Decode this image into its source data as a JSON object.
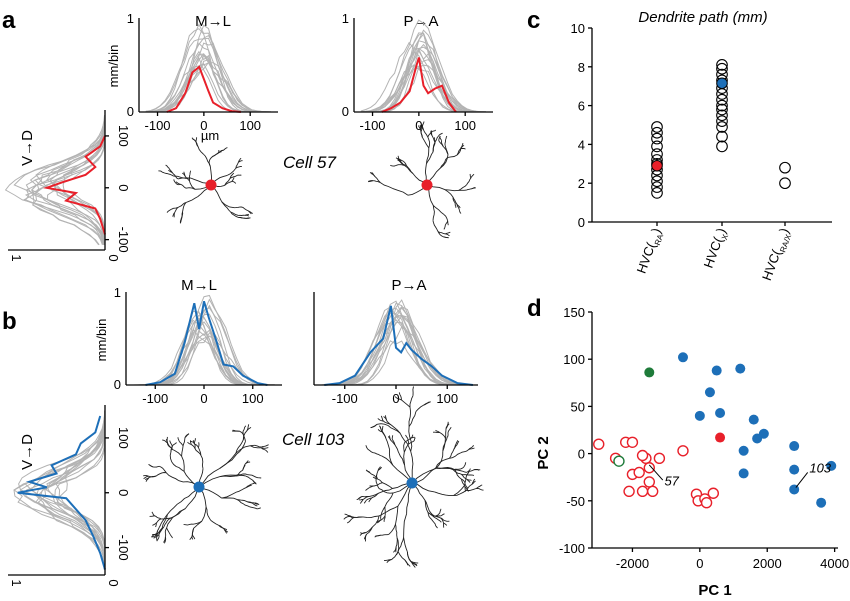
{
  "panel_labels": {
    "a": "a",
    "b": "b",
    "c": "c",
    "d": "d"
  },
  "cells": {
    "a": "Cell 57",
    "b": "Cell 103"
  },
  "colors": {
    "gray": "#b3b3b3",
    "red": "#e8202a",
    "blue": "#1d6fb8",
    "green": "#1e7b3a",
    "black": "#000000"
  },
  "chart_data": [
    {
      "type": "line",
      "panel": "a",
      "title": "M→L",
      "ylabel": "mm/bin",
      "xlabel": "µm",
      "x_ticks": [
        "-100",
        "0",
        "100"
      ],
      "y_ticks": [
        "0",
        "1"
      ],
      "xlim": [
        -140,
        160
      ],
      "ylim": [
        0,
        1
      ],
      "highlight": {
        "color": "red",
        "x": [
          -80,
          -60,
          -40,
          -25,
          -10,
          0,
          10,
          20,
          40,
          60,
          80
        ],
        "y": [
          0,
          0.04,
          0.2,
          0.42,
          0.48,
          0.35,
          0.22,
          0.1,
          0.04,
          0.01,
          0
        ]
      }
    },
    {
      "type": "line",
      "panel": "a",
      "title": "P→A",
      "x_ticks": [
        "-100",
        "0",
        "100"
      ],
      "y_ticks": [
        "0",
        "1"
      ],
      "xlim": [
        -140,
        160
      ],
      "ylim": [
        0,
        1
      ],
      "highlight": {
        "color": "red",
        "x": [
          -80,
          -60,
          -40,
          -20,
          -5,
          0,
          10,
          20,
          35,
          50,
          65,
          80
        ],
        "y": [
          0,
          0.04,
          0.1,
          0.22,
          0.5,
          0.58,
          0.28,
          0.2,
          0.25,
          0.28,
          0.1,
          0
        ]
      }
    },
    {
      "type": "line",
      "panel": "a",
      "orientation": "vertical",
      "ylabel": "V→D",
      "y_ticks": [
        "100",
        "0",
        "-100"
      ],
      "x_ticks": [
        "1",
        "0"
      ],
      "ylim": [
        -120,
        150
      ],
      "highlight": {
        "color": "red",
        "y": [
          100,
          80,
          60,
          40,
          25,
          10,
          0,
          -10,
          -25,
          -40,
          -60,
          -90
        ],
        "x": [
          0,
          0.05,
          0.2,
          0.1,
          0.2,
          0.45,
          0.6,
          0.3,
          0.4,
          0.1,
          0.05,
          0
        ]
      }
    },
    {
      "type": "line",
      "panel": "b",
      "title": "M→L",
      "ylabel": "mm/bin",
      "x_ticks": [
        "-100",
        "0",
        "100"
      ],
      "y_ticks": [
        "0",
        "1"
      ],
      "xlim": [
        -160,
        160
      ],
      "ylim": [
        0,
        1
      ],
      "highlight": {
        "color": "blue",
        "x": [
          -120,
          -90,
          -60,
          -40,
          -20,
          -10,
          0,
          10,
          25,
          40,
          60,
          80,
          110,
          130
        ],
        "y": [
          0,
          0.03,
          0.12,
          0.45,
          0.88,
          0.6,
          0.9,
          0.72,
          0.48,
          0.22,
          0.2,
          0.1,
          0.02,
          0
        ]
      }
    },
    {
      "type": "line",
      "panel": "b",
      "title": "P→A",
      "x_ticks": [
        "-100",
        "0",
        "100"
      ],
      "xlim": [
        -160,
        160
      ],
      "ylim": [
        0,
        1
      ],
      "highlight": {
        "color": "blue",
        "x": [
          -140,
          -110,
          -80,
          -50,
          -25,
          -10,
          0,
          10,
          20,
          30,
          50,
          70,
          90,
          120,
          150
        ],
        "y": [
          0,
          0.02,
          0.1,
          0.35,
          0.5,
          0.85,
          0.4,
          0.35,
          0.45,
          0.38,
          0.28,
          0.2,
          0.1,
          0.02,
          0
        ]
      }
    },
    {
      "type": "line",
      "panel": "b",
      "orientation": "vertical",
      "ylabel": "V→D",
      "y_ticks": [
        "100",
        "0",
        "-100"
      ],
      "x_ticks": [
        "1",
        "0"
      ],
      "ylim": [
        -150,
        160
      ],
      "highlight": {
        "color": "blue",
        "y": [
          140,
          110,
          90,
          70,
          50,
          35,
          20,
          10,
          0,
          -10,
          -30,
          -50,
          -80,
          -110,
          -140
        ],
        "x": [
          0.05,
          0.1,
          0.25,
          0.3,
          0.55,
          0.5,
          0.78,
          0.6,
          0.9,
          0.4,
          0.3,
          0.2,
          0.12,
          0.05,
          0
        ]
      }
    },
    {
      "type": "scatter",
      "panel": "c",
      "title": "Dendrite path (mm)",
      "categories": [
        "HVC(RA)",
        "HVC(X)",
        "HVC(RA/X)"
      ],
      "y_ticks": [
        "0",
        "2",
        "4",
        "6",
        "8",
        "10"
      ],
      "ylim": [
        0,
        10
      ],
      "series": [
        {
          "category": "HVC(RA)",
          "values": [
            1.5,
            1.8,
            2.1,
            2.4,
            2.7,
            3.0,
            3.2,
            3.5,
            3.9,
            4.3,
            4.6,
            4.9
          ],
          "highlight": 2.9,
          "highlight_color": "red"
        },
        {
          "category": "HVC(X)",
          "values": [
            3.9,
            4.4,
            4.9,
            5.2,
            5.5,
            5.8,
            6.0,
            6.3,
            6.6,
            6.9,
            7.3,
            7.6,
            7.9,
            8.1
          ],
          "highlight": 7.15,
          "highlight_color": "blue"
        },
        {
          "category": "HVC(RA/X)",
          "values": [
            2.0,
            2.8
          ]
        }
      ]
    },
    {
      "type": "scatter",
      "panel": "d",
      "xlabel": "PC 1",
      "ylabel": "PC 2",
      "x_ticks": [
        "-2000",
        "0",
        "2000",
        "4000"
      ],
      "y_ticks": [
        "150",
        "100",
        "50",
        "0",
        "-50",
        "-100"
      ],
      "xlim": [
        -3200,
        4100
      ],
      "ylim": [
        -100,
        150
      ],
      "series": [
        {
          "group": "HVC(RA)",
          "color": "red",
          "filled": false,
          "points": [
            [
              -3000,
              10
            ],
            [
              -2500,
              -5
            ],
            [
              -2200,
              12
            ],
            [
              -2000,
              12
            ],
            [
              -2000,
              -22
            ],
            [
              -2100,
              -40
            ],
            [
              -1800,
              -20
            ],
            [
              -1700,
              -40
            ],
            [
              -1600,
              -5
            ],
            [
              -1500,
              -15
            ],
            [
              -1500,
              -30
            ],
            [
              -1400,
              -40
            ],
            [
              -1200,
              -5
            ],
            [
              -500,
              3
            ],
            [
              -100,
              -43
            ],
            [
              -50,
              -50
            ],
            [
              150,
              -48
            ],
            [
              200,
              -52
            ],
            [
              400,
              -42
            ],
            [
              -1700,
              -2
            ]
          ]
        },
        {
          "group": "HVC(X)",
          "color": "blue",
          "filled": true,
          "points": [
            [
              -500,
              102
            ],
            [
              500,
              88
            ],
            [
              1200,
              90
            ],
            [
              300,
              65
            ],
            [
              0,
              40
            ],
            [
              600,
              43
            ],
            [
              1600,
              36
            ],
            [
              1900,
              21
            ],
            [
              1700,
              16
            ],
            [
              1300,
              3
            ],
            [
              2800,
              8
            ],
            [
              2800,
              -17
            ],
            [
              3900,
              -13
            ],
            [
              1300,
              -21
            ],
            [
              2800,
              -38
            ],
            [
              3600,
              -52
            ]
          ]
        },
        {
          "group": "HVC(RA/X)",
          "color": "green",
          "filled": false,
          "points": [
            [
              -2400,
              -8
            ]
          ]
        },
        {
          "group": "HVC(RA/X)",
          "color": "green",
          "filled": true,
          "points": [
            [
              -1500,
              86
            ]
          ]
        },
        {
          "group": "highlight",
          "color": "red",
          "filled": true,
          "points": [
            [
              600,
              17
            ]
          ]
        }
      ],
      "annotations": [
        "57",
        "103"
      ]
    }
  ]
}
